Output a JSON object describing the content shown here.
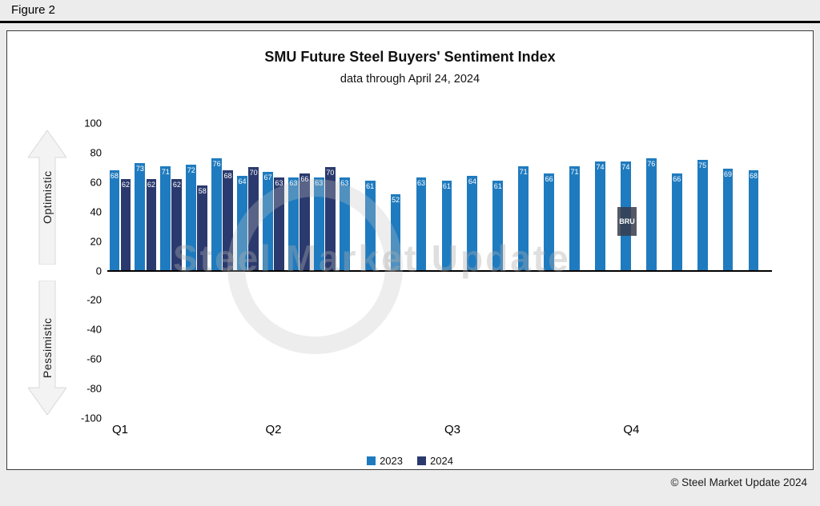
{
  "figure_label": "Figure 2",
  "panel": {
    "copyright": "© Steel Market Update 2024"
  },
  "watermark": {
    "text": "Steel Market Update",
    "badge": "BRU"
  },
  "y_axis_annotations": {
    "optimistic": "Optimistic",
    "pessimistic": "Pessimistic"
  },
  "chart_data": {
    "type": "bar",
    "title": "SMU Future Steel Buyers' Sentiment Index",
    "subtitle": "data through April 24, 2024",
    "ylim": [
      -100,
      100
    ],
    "yticks": [
      100,
      80,
      60,
      40,
      20,
      0,
      -20,
      -40,
      -60,
      -80,
      -100
    ],
    "grid": false,
    "legend_position": "bottom",
    "x_axis_labels": [
      "Q1",
      "Q2",
      "Q3",
      "Q4"
    ],
    "x_label_category_index": [
      0,
      6,
      13,
      20
    ],
    "series": [
      {
        "name": "2023",
        "color": "#1F7BBF",
        "values": [
          68,
          73,
          71,
          72,
          76,
          64,
          67,
          63,
          63,
          63,
          61,
          52,
          63,
          61,
          64,
          61,
          71,
          66,
          71,
          74,
          74,
          76,
          66,
          75,
          69,
          68
        ]
      },
      {
        "name": "2024",
        "color": "#2B3A6E",
        "values": [
          62,
          62,
          62,
          58,
          68,
          70,
          63,
          66,
          70,
          null,
          null,
          null,
          null,
          null,
          null,
          null,
          null,
          null,
          null,
          null,
          null,
          null,
          null,
          null,
          null,
          null
        ]
      }
    ]
  }
}
